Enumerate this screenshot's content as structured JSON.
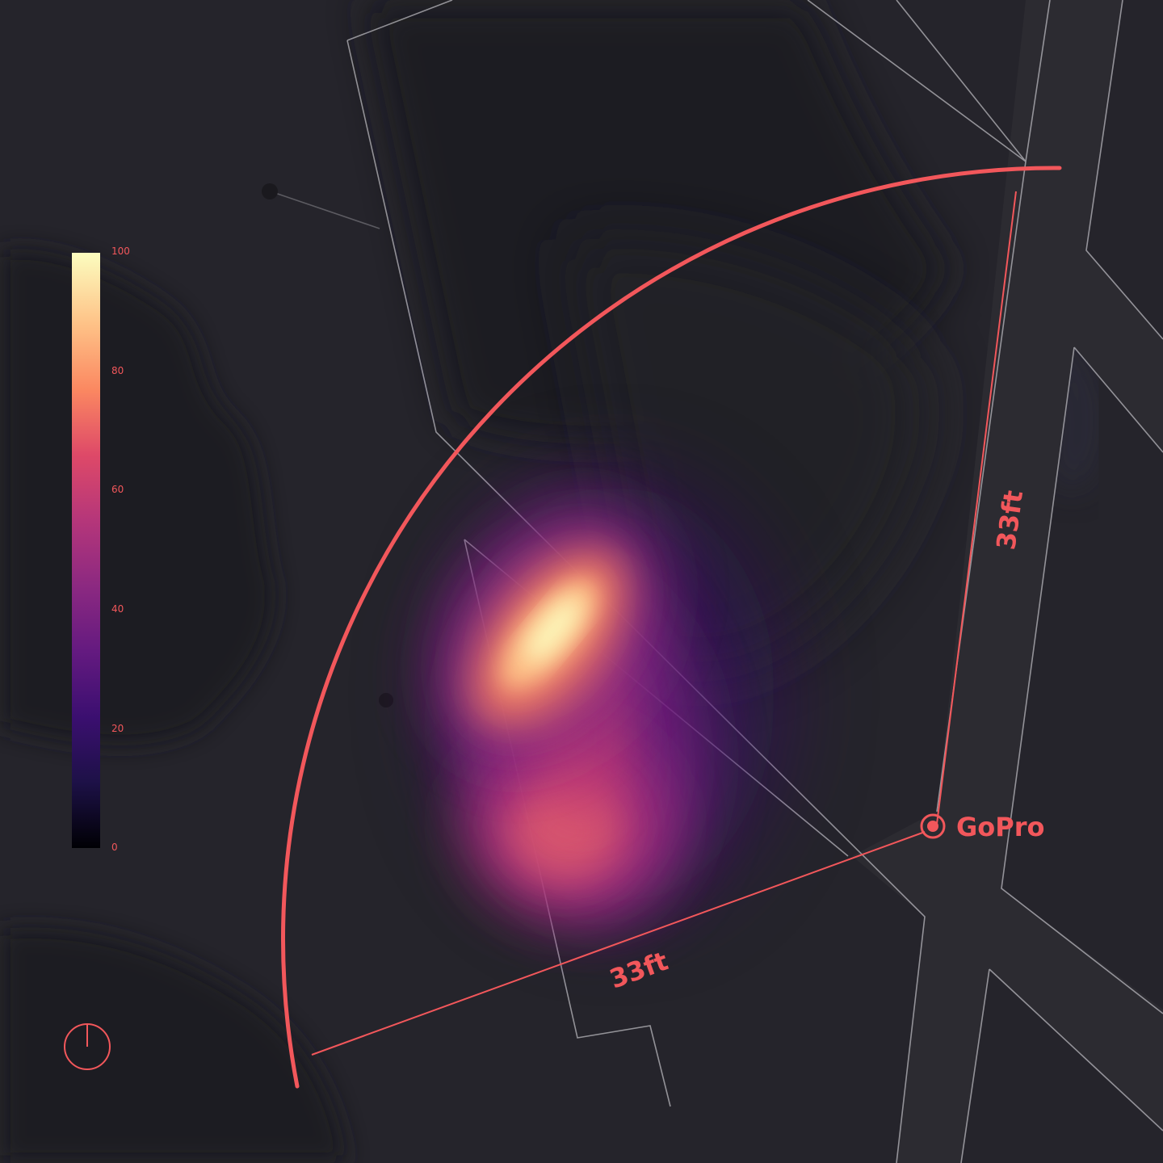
{
  "legend": {
    "ticks": [
      "100",
      "80",
      "60",
      "40",
      "20",
      "0"
    ],
    "colors": [
      "#fcfdbf",
      "#fec287",
      "#fb8861",
      "#de4968",
      "#b5367a",
      "#8c2981",
      "#641a80",
      "#3b0f70",
      "#1d1147",
      "#000004"
    ]
  },
  "camera": {
    "label": "GoPro"
  },
  "range": {
    "side_label": "33ft",
    "bottom_label": "33ft"
  },
  "accent_color": "#f2575b",
  "icons": {
    "north": "north-arrow-icon"
  }
}
